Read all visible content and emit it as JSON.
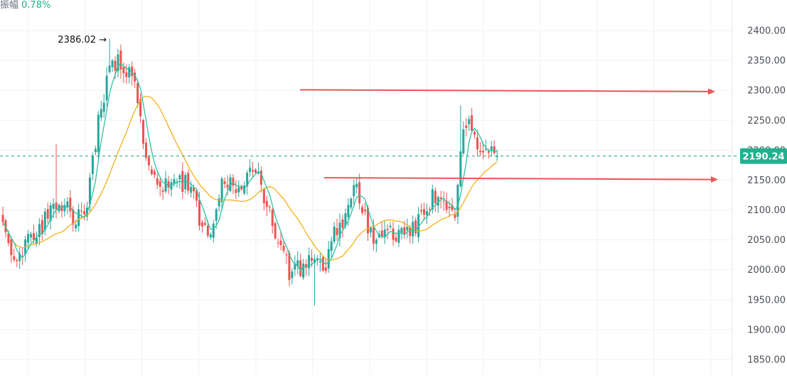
{
  "header": {
    "amplitude_label": "振幅",
    "amplitude_value": "0.78%"
  },
  "colors": {
    "up": "#26a69a",
    "down": "#ef5350",
    "ma_fast": "#2bc4a4",
    "ma_slow": "#f2b01c",
    "arrow": "#e85757",
    "price_line": "#1aa08a",
    "price_tag_bg": "#22b08f",
    "grid": "#eef0f3",
    "axis_text": "#4a4f57",
    "amplitude_text": "#22b08f"
  },
  "chart_data": {
    "type": "candlestick",
    "y_axis": {
      "position": "right",
      "ticks": [
        2400,
        2350,
        2300,
        2250,
        2200,
        2150,
        2100,
        2050,
        2000,
        1950,
        1900,
        1850
      ],
      "tick_labels": [
        "2400.00",
        "2350.00",
        "2300.00",
        "2250.00",
        "2200.00",
        "2150.00",
        "2100.00",
        "2050.00",
        "2000.00",
        "1950.00",
        "1900.00",
        "1850.00"
      ],
      "ylim": [
        1822,
        2425
      ]
    },
    "grid": true,
    "current_price": {
      "value": 2190.24,
      "label": "2190.24"
    },
    "high_marker": {
      "value": 2386.02,
      "label": "2386.02",
      "arrow": "→"
    },
    "checkpoints": [
      [
        0,
        2080
      ],
      [
        3,
        2040
      ],
      [
        6,
        2020
      ],
      [
        10,
        2060
      ],
      [
        14,
        2075
      ],
      [
        18,
        2120
      ],
      [
        22,
        2105
      ],
      [
        26,
        2085
      ],
      [
        30,
        2110
      ],
      [
        34,
        2250
      ],
      [
        38,
        2340
      ],
      [
        42,
        2345
      ],
      [
        46,
        2330
      ],
      [
        50,
        2215
      ],
      [
        54,
        2160
      ],
      [
        58,
        2140
      ],
      [
        62,
        2148
      ],
      [
        66,
        2145
      ],
      [
        70,
        2085
      ],
      [
        74,
        2070
      ],
      [
        78,
        2155
      ],
      [
        82,
        2140
      ],
      [
        86,
        2148
      ],
      [
        90,
        2165
      ],
      [
        94,
        2115
      ],
      [
        98,
        2050
      ],
      [
        102,
        2000
      ],
      [
        106,
        2005
      ],
      [
        110,
        2010
      ],
      [
        114,
        2000
      ],
      [
        118,
        2060
      ],
      [
        122,
        2095
      ],
      [
        126,
        2145
      ],
      [
        130,
        2060
      ],
      [
        134,
        2055
      ],
      [
        138,
        2060
      ],
      [
        142,
        2055
      ],
      [
        146,
        2065
      ],
      [
        150,
        2105
      ],
      [
        154,
        2125
      ],
      [
        158,
        2090
      ],
      [
        161,
        2085
      ],
      [
        164,
        2245
      ],
      [
        167,
        2235
      ],
      [
        170,
        2205
      ],
      [
        173,
        2190
      ],
      [
        176,
        2190.24
      ]
    ],
    "trend_arrows": [
      {
        "from": [
          422,
          2301
        ],
        "to": [
          1006,
          2298
        ]
      },
      {
        "from": [
          456,
          2154
        ],
        "to": [
          1010,
          2151
        ]
      }
    ],
    "series": [
      {
        "kind": "moving_average",
        "period": 5
      },
      {
        "kind": "moving_average",
        "period": 20
      }
    ]
  }
}
